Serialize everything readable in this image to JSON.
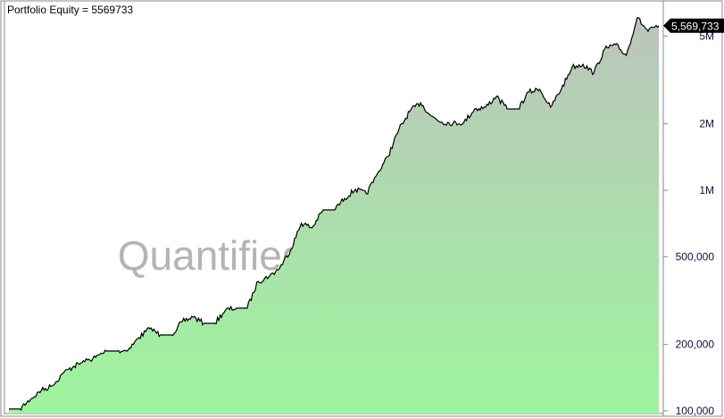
{
  "chart_data": {
    "type": "area",
    "title": "Portfolio Equity = 5569733",
    "watermark": "QuantifiedStrategies.com",
    "y_scale": "log",
    "ylim": [
      100000,
      6500000
    ],
    "y_ticks": [
      {
        "value": 100000,
        "label": "100,000"
      },
      {
        "value": 200000,
        "label": "200,000"
      },
      {
        "value": 500000,
        "label": "500,000"
      },
      {
        "value": 1000000,
        "label": "1M"
      },
      {
        "value": 2000000,
        "label": "2M"
      },
      {
        "value": 5000000,
        "label": "5M"
      }
    ],
    "last_value_label": "5,569,733",
    "grid": false,
    "colors": {
      "line": "#000000",
      "fill_top": "#bcc4bc",
      "fill_bottom": "#9ef59e",
      "tag_bg": "#000000",
      "tag_text": "#ffffff"
    },
    "values": [
      102000,
      102000,
      112900,
      123900,
      129800,
      147900,
      159400,
      167000,
      175000,
      186800,
      186800,
      188500,
      214800,
      235800,
      220800,
      220800,
      254000,
      266000,
      249400,
      249400,
      286800,
      292200,
      292200,
      386400,
      405000,
      444000,
      535600,
      708000,
      676000,
      814700,
      814700,
      919000,
      1009000,
      963000,
      1183000,
      1425000,
      1885000,
      2272000,
      2494000,
      2168000,
      2031000,
      2012000,
      2031000,
      2335000,
      2379000,
      2661000,
      2335000,
      2335000,
      2788000,
      2868000,
      2379000,
      2868000,
      3621000,
      3723000,
      3391000,
      4363000,
      4570000,
      4087000,
      6045000,
      5255000,
      5569733
    ]
  }
}
